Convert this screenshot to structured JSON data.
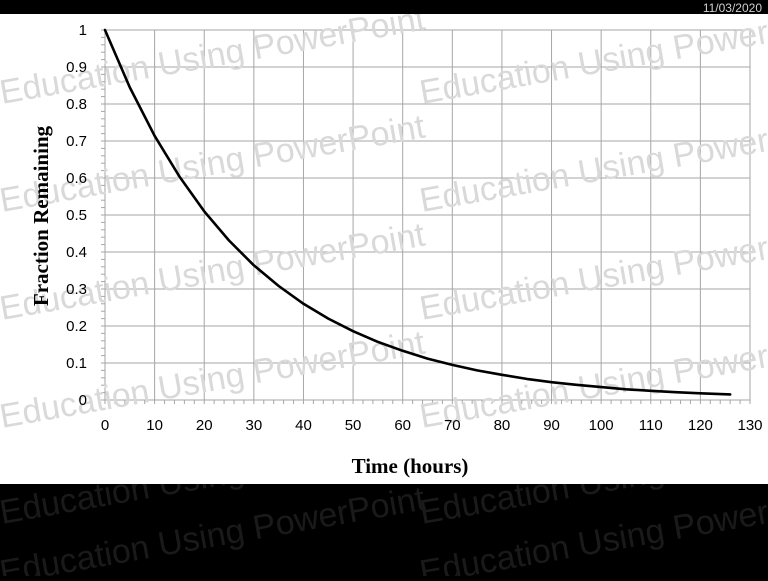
{
  "header": {
    "date": "11/03/2020"
  },
  "watermark": {
    "text": "Education Using PowerPoint",
    "color": "#d9d9d9"
  },
  "colors": {
    "grid": "#a6a6a6",
    "curve": "#000000",
    "background": "#ffffff"
  },
  "chart_data": {
    "type": "line",
    "title": "",
    "xlabel": "Time (hours)",
    "ylabel": "Fraction Remaining",
    "xlim": [
      0,
      130
    ],
    "ylim": [
      0,
      1
    ],
    "x_ticks": [
      0,
      10,
      20,
      30,
      40,
      50,
      60,
      70,
      80,
      90,
      100,
      110,
      120,
      130
    ],
    "y_ticks": [
      0,
      0.1,
      0.2,
      0.3,
      0.4,
      0.5,
      0.6,
      0.7,
      0.8,
      0.9,
      1
    ],
    "x_tick_labels": [
      "0",
      "10",
      "20",
      "30",
      "40",
      "50",
      "60",
      "70",
      "80",
      "90",
      "100",
      "110",
      "120",
      "130"
    ],
    "y_tick_labels": [
      "0",
      "0.1",
      "0.2",
      "0.3",
      "0.4",
      "0.5",
      "0.6",
      "0.7",
      "0.8",
      "0.9",
      "1"
    ],
    "grid": true,
    "legend": "none",
    "series": [
      {
        "x": [
          0,
          5,
          10,
          15,
          20,
          25,
          30,
          35,
          40,
          45,
          50,
          55,
          60,
          65,
          70,
          75,
          80,
          85,
          90,
          95,
          100,
          105,
          110,
          115,
          120,
          126
        ],
        "y": [
          1.0,
          0.845,
          0.714,
          0.604,
          0.51,
          0.431,
          0.364,
          0.308,
          0.26,
          0.22,
          0.186,
          0.157,
          0.133,
          0.112,
          0.095,
          0.08,
          0.068,
          0.057,
          0.048,
          0.041,
          0.035,
          0.029,
          0.025,
          0.021,
          0.018,
          0.015
        ]
      }
    ]
  }
}
